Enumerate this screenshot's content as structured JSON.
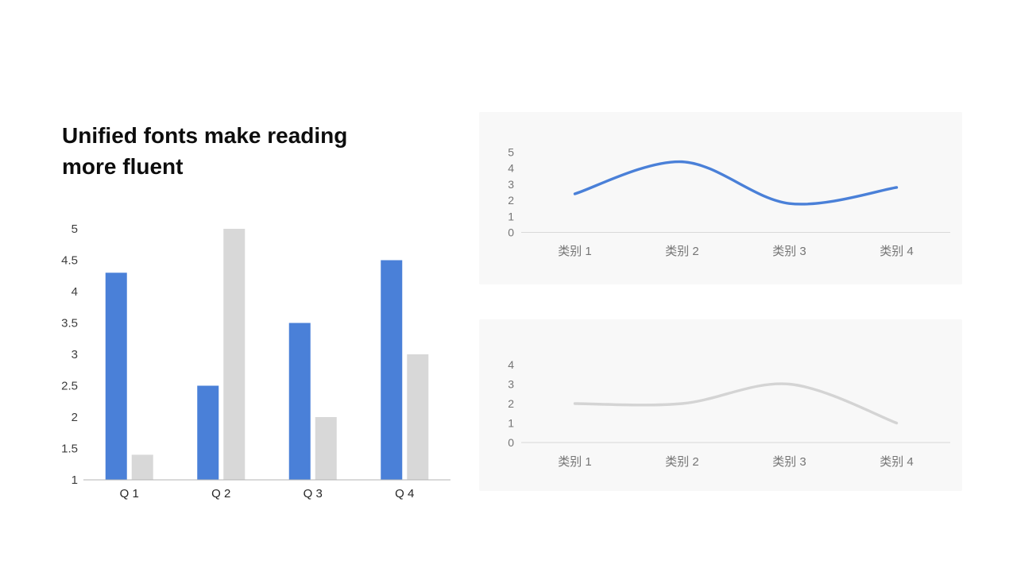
{
  "slide": {
    "title": "Unified fonts make reading more fluent"
  },
  "colors": {
    "accent_blue": "#4a80d8",
    "bar_gray": "#d8d8d8",
    "line_gray": "#d4d4d4",
    "card_background": "#f8f8f8",
    "card_axis_line": "#d9d9d9",
    "bar_axis_line": "#b3b3b3",
    "bar_tick_text": "#3d3d3d",
    "bar_category_text": "#262626",
    "card_tick_text": "#757575"
  },
  "chart_data": [
    {
      "id": "bar_chart",
      "type": "bar",
      "title": "",
      "categories": [
        "Q 1",
        "Q 2",
        "Q 3",
        "Q 4"
      ],
      "series": [
        {
          "name": "series-blue",
          "color": "#4a80d8",
          "values": [
            4.3,
            2.5,
            3.5,
            4.5
          ]
        },
        {
          "name": "series-gray",
          "color": "#d8d8d8",
          "values": [
            1.4,
            5,
            2,
            3
          ]
        }
      ],
      "ylim": [
        1,
        5
      ],
      "yticks": [
        1,
        1.5,
        2,
        2.5,
        3,
        3.5,
        4,
        4.5,
        5
      ],
      "xlabel": "",
      "ylabel": "",
      "grid": false,
      "legend": "none"
    },
    {
      "id": "line_chart_top",
      "type": "line",
      "title": "",
      "categories": [
        "类别 1",
        "类别 2",
        "类别 3",
        "类别 4"
      ],
      "series": [
        {
          "name": "series-blue",
          "color": "#4a80d8",
          "values": [
            2.4,
            4.4,
            1.8,
            2.8
          ]
        }
      ],
      "ylim": [
        0,
        5
      ],
      "yticks": [
        0,
        1,
        2,
        3,
        4,
        5
      ],
      "smooth": true,
      "xlabel": "",
      "ylabel": "",
      "grid": false,
      "legend": "none"
    },
    {
      "id": "line_chart_bottom",
      "type": "line",
      "title": "",
      "categories": [
        "类别 1",
        "类别 2",
        "类别 3",
        "类别 4"
      ],
      "series": [
        {
          "name": "series-gray",
          "color": "#d4d4d4",
          "values": [
            2,
            2,
            3,
            1
          ]
        }
      ],
      "ylim": [
        0,
        4
      ],
      "yticks": [
        0,
        1,
        2,
        3,
        4
      ],
      "smooth": true,
      "xlabel": "",
      "ylabel": "",
      "grid": false,
      "legend": "none"
    }
  ]
}
